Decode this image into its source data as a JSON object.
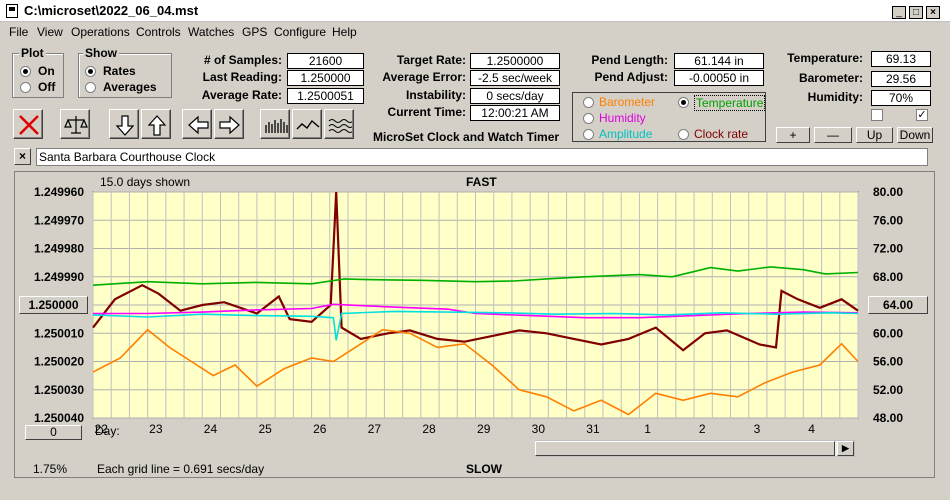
{
  "window": {
    "title": "C:\\microset\\2022_06_04.mst"
  },
  "menu": [
    "File",
    "View",
    "Operations",
    "Controls",
    "Watches",
    "GPS",
    "Configure",
    "Help"
  ],
  "plot": {
    "title": "Plot",
    "on": "On",
    "off": "Off",
    "selected": "On"
  },
  "show": {
    "title": "Show",
    "rates": "Rates",
    "averages": "Averages",
    "selected": "Rates"
  },
  "stats": {
    "samples_label": "# of Samples:",
    "samples": "21600",
    "last_label": "Last Reading:",
    "last": "1.250000",
    "avg_label": "Average Rate:",
    "avg": "1.2500051",
    "target_label": "Target Rate:",
    "target": "1.2500000",
    "avgerr_label": "Average Error:",
    "avgerr": "-2.5 sec/week",
    "instab_label": "Instability:",
    "instab": "0 secs/day",
    "time_label": "Current Time:",
    "time": "12:00:21 AM",
    "pendlen_label": "Pend Length:",
    "pendlen": "61.144 in",
    "pendadj_label": "Pend Adjust:",
    "pendadj": "-0.00050 in",
    "temp_label": "Temperature:",
    "temp": "69.13",
    "baro_label": "Barometer:",
    "baro": "29.56",
    "hum_label": "Humidity:",
    "hum": "70%"
  },
  "app_subtitle": "MicroSet Clock and Watch Timer",
  "sensor_select": {
    "barometer": "Barometer",
    "temperature": "Temperature",
    "humidity": "Humidity",
    "amplitude": "Amplitude",
    "clock_rate": "Clock rate",
    "selected": "Temperature"
  },
  "adjust_buttons": {
    "plus": "+",
    "minus": "—",
    "up": "Up",
    "down": "Down"
  },
  "checkboxes": {
    "left": false,
    "right": true
  },
  "clock_name": "Santa Barbara Courthouse Clock",
  "chart_data": {
    "type": "line",
    "days_shown": "15.0 days shown",
    "top_label": "FAST",
    "bottom_label": "SLOW",
    "grid_note": "Each grid line = 0.691 secs/day",
    "left_percent": "1.75%",
    "left_center_button": "1.250000",
    "left_bottom_button": "0",
    "right_center_button": "64.00",
    "x_prefix": "Day:",
    "categories": [
      "22",
      "23",
      "24",
      "25",
      "26",
      "27",
      "28",
      "29",
      "30",
      "31",
      "1",
      "2",
      "3",
      "4"
    ],
    "y_left_ticks": [
      "1.249960",
      "1.249970",
      "1.249980",
      "1.249990",
      "1.250000",
      "1.250010",
      "1.250020",
      "1.250030",
      "1.250040"
    ],
    "y_right_ticks": [
      "80.00",
      "76.00",
      "72.00",
      "68.00",
      "64.00",
      "60.00",
      "56.00",
      "52.00",
      "48.00"
    ],
    "y_left_range": [
      1.24996,
      1.25004
    ],
    "y_right_range": [
      48.0,
      80.0
    ],
    "x_range_days": [
      0,
      14
    ],
    "grid": true,
    "series": [
      {
        "name": "Clock rate",
        "axis": "left",
        "color": "#800000",
        "points": [
          [
            0,
            1.250008
          ],
          [
            0.4,
            1.249998
          ],
          [
            0.9,
            1.249993
          ],
          [
            1.2,
            1.249996
          ],
          [
            1.6,
            1.250002
          ],
          [
            2.0,
            1.25
          ],
          [
            2.4,
            1.249999
          ],
          [
            3.0,
            1.250003
          ],
          [
            3.4,
            1.249997
          ],
          [
            3.6,
            1.250005
          ],
          [
            4.0,
            1.250006
          ],
          [
            4.35,
            1.25
          ],
          [
            4.45,
            1.24996
          ],
          [
            4.55,
            1.250008
          ],
          [
            4.9,
            1.250012
          ],
          [
            5.4,
            1.25001
          ],
          [
            5.8,
            1.250009
          ],
          [
            6.3,
            1.250012
          ],
          [
            6.8,
            1.250013
          ],
          [
            7.3,
            1.250011
          ],
          [
            7.8,
            1.250009
          ],
          [
            8.3,
            1.25001
          ],
          [
            8.8,
            1.250012
          ],
          [
            9.3,
            1.250014
          ],
          [
            9.8,
            1.250012
          ],
          [
            10.3,
            1.250008
          ],
          [
            10.8,
            1.250016
          ],
          [
            11.2,
            1.25001
          ],
          [
            11.6,
            1.250009
          ],
          [
            12.2,
            1.250014
          ],
          [
            12.5,
            1.250015
          ],
          [
            12.6,
            1.249995
          ],
          [
            12.9,
            1.249998
          ],
          [
            13.3,
            1.250001
          ],
          [
            13.7,
            1.249998
          ],
          [
            14.0,
            1.250002
          ]
        ]
      },
      {
        "name": "Barometer",
        "axis": "right",
        "color": "#ff8000",
        "points": [
          [
            0,
            54.5
          ],
          [
            0.5,
            56.5
          ],
          [
            1.0,
            60.5
          ],
          [
            1.4,
            58.0
          ],
          [
            1.8,
            56.0
          ],
          [
            2.2,
            54.0
          ],
          [
            2.6,
            55.5
          ],
          [
            3.0,
            52.5
          ],
          [
            3.5,
            55.0
          ],
          [
            4.0,
            56.5
          ],
          [
            4.4,
            56.0
          ],
          [
            4.8,
            58.0
          ],
          [
            5.3,
            60.5
          ],
          [
            5.8,
            60.0
          ],
          [
            6.3,
            58.0
          ],
          [
            6.8,
            58.5
          ],
          [
            7.3,
            55.5
          ],
          [
            7.8,
            52.0
          ],
          [
            8.3,
            51.0
          ],
          [
            8.8,
            49.0
          ],
          [
            9.3,
            50.5
          ],
          [
            9.8,
            48.5
          ],
          [
            10.3,
            51.5
          ],
          [
            10.8,
            50.5
          ],
          [
            11.3,
            51.5
          ],
          [
            11.8,
            51.0
          ],
          [
            12.3,
            53.0
          ],
          [
            12.8,
            54.5
          ],
          [
            13.3,
            55.5
          ],
          [
            13.7,
            58.5
          ],
          [
            14.0,
            56.0
          ]
        ]
      },
      {
        "name": "Temperature",
        "axis": "right",
        "color": "#00b000",
        "points": [
          [
            0,
            66.8
          ],
          [
            1.0,
            67.3
          ],
          [
            2.0,
            67.0
          ],
          [
            3.0,
            67.2
          ],
          [
            4.0,
            67.0
          ],
          [
            4.6,
            67.7
          ],
          [
            5.0,
            67.6
          ],
          [
            6.0,
            67.5
          ],
          [
            7.0,
            67.3
          ],
          [
            7.7,
            67.4
          ],
          [
            8.3,
            67.7
          ],
          [
            9.0,
            68.0
          ],
          [
            10.0,
            68.3
          ],
          [
            10.6,
            68.0
          ],
          [
            11.3,
            69.3
          ],
          [
            11.8,
            68.8
          ],
          [
            12.4,
            69.4
          ],
          [
            13.0,
            69.0
          ],
          [
            13.4,
            68.4
          ],
          [
            14.0,
            68.6
          ]
        ]
      },
      {
        "name": "Humidity",
        "axis": "right",
        "color": "#ff00ff",
        "points": [
          [
            0,
            62.8
          ],
          [
            1.0,
            62.8
          ],
          [
            2.0,
            63.0
          ],
          [
            3.0,
            63.3
          ],
          [
            4.0,
            63.5
          ],
          [
            4.4,
            64.1
          ],
          [
            5.5,
            63.7
          ],
          [
            6.5,
            63.4
          ],
          [
            7.0,
            62.8
          ],
          [
            8.0,
            62.5
          ],
          [
            9.0,
            62.2
          ],
          [
            10.0,
            62.2
          ],
          [
            11.0,
            62.5
          ],
          [
            12.0,
            62.8
          ],
          [
            13.0,
            63.0
          ],
          [
            14.0,
            62.9
          ]
        ]
      },
      {
        "name": "Amplitude",
        "axis": "right",
        "color": "#00e0e0",
        "points": [
          [
            0,
            62.6
          ],
          [
            1.0,
            62.3
          ],
          [
            2.0,
            62.7
          ],
          [
            3.0,
            62.5
          ],
          [
            4.0,
            62.4
          ],
          [
            4.4,
            62.2
          ],
          [
            4.45,
            59.0
          ],
          [
            4.55,
            62.8
          ],
          [
            5.5,
            63.1
          ],
          [
            6.5,
            63.0
          ],
          [
            7.5,
            62.9
          ],
          [
            8.5,
            62.7
          ],
          [
            9.5,
            62.8
          ],
          [
            10.5,
            62.6
          ],
          [
            11.5,
            62.9
          ],
          [
            12.5,
            62.7
          ],
          [
            13.5,
            62.9
          ],
          [
            14.0,
            62.8
          ]
        ]
      }
    ]
  }
}
